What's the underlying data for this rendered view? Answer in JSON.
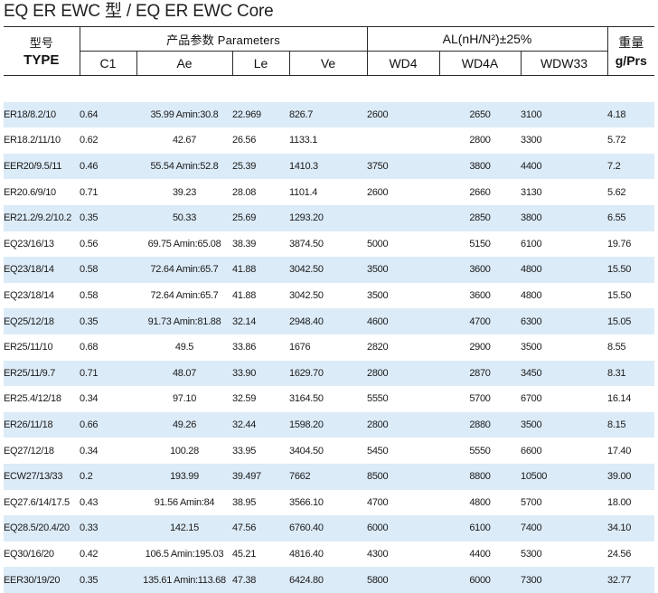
{
  "title": "EQ ER EWC 型  / EQ ER EWC Core",
  "header": {
    "type_zh": "型号",
    "type_en": "TYPE",
    "params_group": "产品参数  Parameters",
    "al_group": "AL(nH/N²)±25%",
    "weight_zh": "重量",
    "weight_en": "g/Prs",
    "cols": {
      "c1": "C1",
      "ae": "Ae",
      "le": "Le",
      "ve": "Ve",
      "wd4": "WD4",
      "wd4a": "WD4A",
      "wdw33": "WDW33"
    }
  },
  "rows": [
    {
      "type": "ER18/8.2/10",
      "c1": "0.64",
      "ae": "35.99  Amin:30.8",
      "le": "22.969",
      "ve": "826.7",
      "wd4": "2600",
      "wd4a": "2650",
      "wdw33": "3100",
      "weight": "4.18"
    },
    {
      "type": "ER18.2/11/10",
      "c1": "0.62",
      "ae": "42.67",
      "le": "26.56",
      "ve": "1133.1",
      "wd4": "",
      "wd4a": "2800",
      "wdw33": "3300",
      "weight": "5.72"
    },
    {
      "type": "EER20/9.5/11",
      "c1": "0.46",
      "ae": "55.54  Amin:52.8",
      "le": "25.39",
      "ve": "1410.3",
      "wd4": "3750",
      "wd4a": "3800",
      "wdw33": "4400",
      "weight": "7.2"
    },
    {
      "type": "ER20.6/9/10",
      "c1": "0.71",
      "ae": "39.23",
      "le": "28.08",
      "ve": "1101.4",
      "wd4": "2600",
      "wd4a": "2660",
      "wdw33": "3130",
      "weight": "5.62"
    },
    {
      "type": "ER21.2/9.2/10.2",
      "c1": "0.35",
      "ae": "50.33",
      "le": "25.69",
      "ve": "1293.20",
      "wd4": "",
      "wd4a": "2850",
      "wdw33": "3800",
      "weight": "6.55"
    },
    {
      "type": "EQ23/16/13",
      "c1": "0.56",
      "ae": "69.75  Amin:65.08",
      "le": "38.39",
      "ve": "3874.50",
      "wd4": "5000",
      "wd4a": "5150",
      "wdw33": "6100",
      "weight": "19.76"
    },
    {
      "type": "EQ23/18/14",
      "c1": "0.58",
      "ae": "72.64   Amin:65.7",
      "le": "41.88",
      "ve": "3042.50",
      "wd4": "3500",
      "wd4a": "3600",
      "wdw33": "4800",
      "weight": "15.50"
    },
    {
      "type": "EQ23/18/14",
      "c1": "0.58",
      "ae": "72.64   Amin:65.7",
      "le": "41.88",
      "ve": "3042.50",
      "wd4": "3500",
      "wd4a": "3600",
      "wdw33": "4800",
      "weight": "15.50"
    },
    {
      "type": "EQ25/12/18",
      "c1": "0.35",
      "ae": "91.73  Amin:81.88",
      "le": "32.14",
      "ve": "2948.40",
      "wd4": "4600",
      "wd4a": "4700",
      "wdw33": "6300",
      "weight": "15.05"
    },
    {
      "type": "ER25/11/10",
      "c1": "0.68",
      "ae": "49.5",
      "le": "33.86",
      "ve": "1676",
      "wd4": "2820",
      "wd4a": "2900",
      "wdw33": "3500",
      "weight": "8.55"
    },
    {
      "type": "ER25/11/9.7",
      "c1": "0.71",
      "ae": "48.07",
      "le": "33.90",
      "ve": "1629.70",
      "wd4": "2800",
      "wd4a": "2870",
      "wdw33": "3450",
      "weight": "8.31"
    },
    {
      "type": "ER25.4/12/18",
      "c1": "0.34",
      "ae": "97.10",
      "le": "32.59",
      "ve": "3164.50",
      "wd4": "5550",
      "wd4a": "5700",
      "wdw33": "6700",
      "weight": "16.14"
    },
    {
      "type": "ER26/11/18",
      "c1": "0.66",
      "ae": "49.26",
      "le": "32.44",
      "ve": "1598.20",
      "wd4": "2800",
      "wd4a": "2880",
      "wdw33": "3500",
      "weight": "8.15"
    },
    {
      "type": "EQ27/12/18",
      "c1": "0.34",
      "ae": "100.28",
      "le": "33.95",
      "ve": "3404.50",
      "wd4": "5450",
      "wd4a": "5550",
      "wdw33": "6600",
      "weight": "17.40"
    },
    {
      "type": "ECW27/13/33",
      "c1": "0.2",
      "ae": "193.99",
      "le": "39.497",
      "ve": "7662",
      "wd4": "8500",
      "wd4a": "8800",
      "wdw33": "10500",
      "weight": "39.00"
    },
    {
      "type": "EQ27.6/14/17.5",
      "c1": "0.43",
      "ae": "91.56  Amin:84",
      "le": "38.95",
      "ve": "3566.10",
      "wd4": "4700",
      "wd4a": "4800",
      "wdw33": "5700",
      "weight": "18.00"
    },
    {
      "type": "EQ28.5/20.4/20",
      "c1": "0.33",
      "ae": "142.15",
      "le": "47.56",
      "ve": "6760.40",
      "wd4": "6000",
      "wd4a": "6100",
      "wdw33": "7400",
      "weight": "34.10"
    },
    {
      "type": "EQ30/16/20",
      "c1": "0.42",
      "ae": "106.5  Amin:195.03",
      "le": "45.21",
      "ve": "4816.40",
      "wd4": "4300",
      "wd4a": "4400",
      "wdw33": "5300",
      "weight": "24.56"
    },
    {
      "type": "EER30/19/20",
      "c1": "0.35",
      "ae": "135.61 Amin:113.68",
      "le": "47.38",
      "ve": "6424.80",
      "wd4": "5800",
      "wd4a": "6000",
      "wdw33": "7300",
      "weight": "32.77"
    }
  ],
  "colors": {
    "stripe": "#dcebf8",
    "border": "#2b2b2b"
  }
}
